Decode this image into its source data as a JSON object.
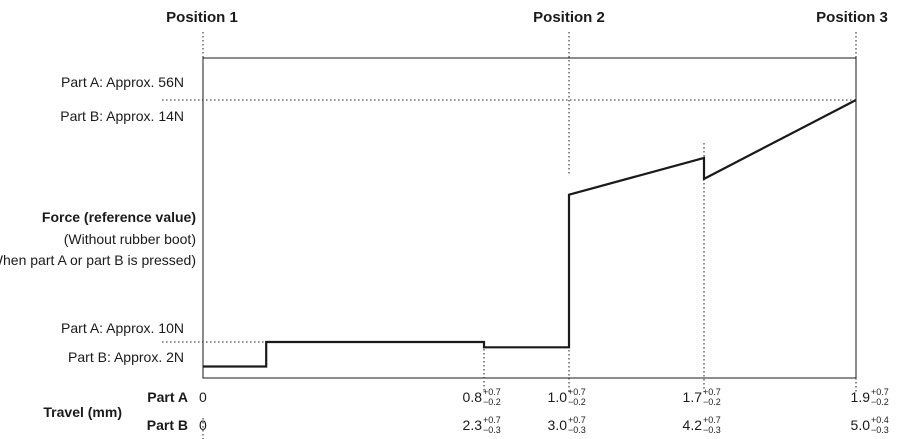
{
  "chart_data": {
    "type": "line",
    "positions": [
      "Position 1",
      "Position 2",
      "Position 3"
    ],
    "y_axis": {
      "title": "Force (reference value)",
      "subtitle_1": "(Without rubber boot)",
      "subtitle_2": "(When part A or part B is pressed)",
      "high_label_a": "Part A: Approx. 56N",
      "high_label_b": "Part B: Approx. 14N",
      "low_label_a": "Part A: Approx. 10N",
      "low_label_b": "Part B: Approx. 2N"
    },
    "x_axis": {
      "title": "Travel (mm)",
      "row_a_label": "Part A",
      "row_b_label": "Part B",
      "part_a_ticks": [
        {
          "value": "0",
          "plus": "",
          "minus": ""
        },
        {
          "value": "0.8",
          "plus": "+0.7",
          "minus": "−0.2"
        },
        {
          "value": "1.0",
          "plus": "+0.7",
          "minus": "−0.2"
        },
        {
          "value": "1.7",
          "plus": "+0.7",
          "minus": "−0.2"
        },
        {
          "value": "1.9",
          "plus": "+0.7",
          "minus": "−0.2"
        }
      ],
      "part_b_ticks": [
        {
          "value": "0",
          "plus": "",
          "minus": ""
        },
        {
          "value": "2.3",
          "plus": "+0.7",
          "minus": "−0.3"
        },
        {
          "value": "3.0",
          "plus": "+0.7",
          "minus": "−0.3"
        },
        {
          "value": "4.2",
          "plus": "+0.7",
          "minus": "−0.3"
        },
        {
          "value": "5.0",
          "plus": "+0.4",
          "minus": "−0.3"
        }
      ]
    },
    "series": [
      {
        "x": [
          0,
          0.18,
          0.18,
          0.8,
          0.8,
          1.0,
          1.0,
          1.7,
          1.7,
          1.9
        ],
        "y": [
          3,
          3,
          10,
          10,
          8.5,
          8.5,
          38,
          45,
          41,
          56
        ]
      }
    ]
  }
}
